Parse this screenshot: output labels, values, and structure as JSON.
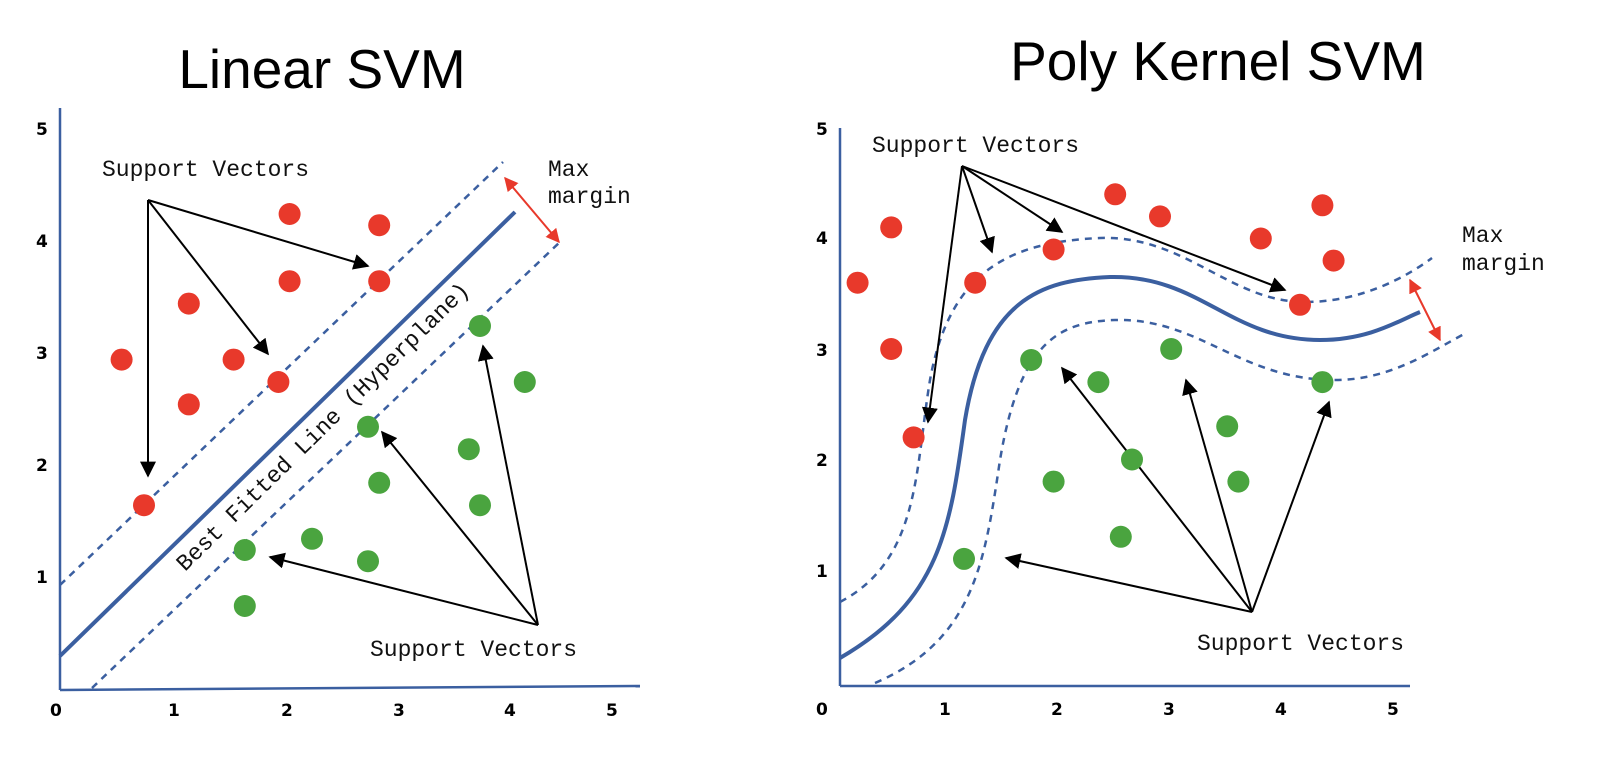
{
  "colors": {
    "axis": "#3b5fa0",
    "hyperplane": "#3b5fa0",
    "margin": "#3b5fa0",
    "negative_point": "#e8392b",
    "positive_point": "#4aa43f",
    "arrow": "#000000",
    "margin_arrow": "#e8392b"
  },
  "chart_data": [
    {
      "type": "scatter",
      "title": "Linear SVM",
      "x_ticks": [
        "0",
        "1",
        "2",
        "3",
        "4",
        "5"
      ],
      "y_ticks": [
        "1",
        "2",
        "3",
        "4",
        "5"
      ],
      "xlim": [
        0,
        5
      ],
      "ylim": [
        0,
        5
      ],
      "grid": false,
      "annotations": {
        "support_vectors_top": "Support Vectors",
        "support_vectors_bottom": "Support Vectors",
        "max_margin": [
          "Max",
          "margin"
        ],
        "hyperplane_label": "Best Fitted Line (Hyperplane)"
      },
      "series": [
        {
          "color_role": "negative_point",
          "points": [
            {
              "x": 2.05,
              "y": 4.25
            },
            {
              "x": 2.85,
              "y": 4.15
            },
            {
              "x": 2.05,
              "y": 3.65
            },
            {
              "x": 2.85,
              "y": 3.65
            },
            {
              "x": 1.15,
              "y": 3.45
            },
            {
              "x": 0.55,
              "y": 2.95
            },
            {
              "x": 1.55,
              "y": 2.95
            },
            {
              "x": 1.95,
              "y": 2.75
            },
            {
              "x": 1.15,
              "y": 2.55
            },
            {
              "x": 0.75,
              "y": 1.65
            }
          ]
        },
        {
          "color_role": "positive_point",
          "points": [
            {
              "x": 3.75,
              "y": 3.25
            },
            {
              "x": 4.15,
              "y": 2.75
            },
            {
              "x": 2.75,
              "y": 2.35
            },
            {
              "x": 3.65,
              "y": 2.15
            },
            {
              "x": 2.85,
              "y": 1.85
            },
            {
              "x": 3.75,
              "y": 1.65
            },
            {
              "x": 2.25,
              "y": 1.35
            },
            {
              "x": 1.65,
              "y": 1.25
            },
            {
              "x": 2.75,
              "y": 1.15
            },
            {
              "x": 1.65,
              "y": 0.75
            }
          ]
        }
      ]
    },
    {
      "type": "scatter",
      "title": "Poly Kernel SVM",
      "x_ticks": [
        "0",
        "1",
        "2",
        "3",
        "4",
        "5"
      ],
      "y_ticks": [
        "1",
        "2",
        "3",
        "4",
        "5"
      ],
      "xlim": [
        0,
        5
      ],
      "ylim": [
        0,
        5
      ],
      "grid": false,
      "annotations": {
        "support_vectors_top": "Support Vectors",
        "support_vectors_bottom": "Support Vectors",
        "max_margin": [
          "Max",
          "margin"
        ]
      },
      "series": [
        {
          "color_role": "negative_point",
          "points": [
            {
              "x": 2.6,
              "y": 4.45
            },
            {
              "x": 3.0,
              "y": 4.25
            },
            {
              "x": 4.45,
              "y": 4.35
            },
            {
              "x": 0.6,
              "y": 4.15
            },
            {
              "x": 3.9,
              "y": 4.05
            },
            {
              "x": 2.05,
              "y": 3.95
            },
            {
              "x": 4.55,
              "y": 3.85
            },
            {
              "x": 0.3,
              "y": 3.65
            },
            {
              "x": 1.35,
              "y": 3.65
            },
            {
              "x": 4.25,
              "y": 3.45
            },
            {
              "x": 0.6,
              "y": 3.05
            },
            {
              "x": 0.8,
              "y": 2.25
            }
          ]
        },
        {
          "color_role": "positive_point",
          "points": [
            {
              "x": 3.1,
              "y": 3.05
            },
            {
              "x": 1.85,
              "y": 2.95
            },
            {
              "x": 2.45,
              "y": 2.75
            },
            {
              "x": 4.45,
              "y": 2.75
            },
            {
              "x": 3.6,
              "y": 2.35
            },
            {
              "x": 2.75,
              "y": 2.05
            },
            {
              "x": 2.05,
              "y": 1.85
            },
            {
              "x": 3.7,
              "y": 1.85
            },
            {
              "x": 2.65,
              "y": 1.35
            },
            {
              "x": 1.25,
              "y": 1.15
            }
          ]
        }
      ]
    }
  ]
}
